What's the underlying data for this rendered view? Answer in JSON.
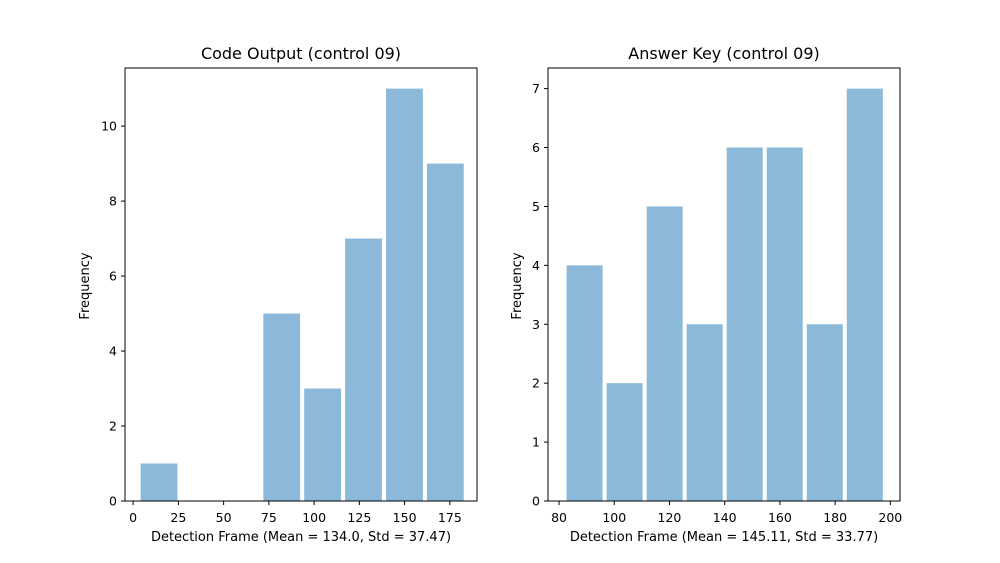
{
  "bar_color": "#8cb9d9",
  "chart_data": [
    {
      "type": "bar",
      "title": "Code Output (control 09)",
      "xlabel": "Detection Frame (Mean = 134.0, Std = 37.47)",
      "ylabel": "Frequency",
      "xlim": [
        -4.5,
        190
      ],
      "ylim": [
        0,
        11.55
      ],
      "xticks": [
        0,
        25,
        50,
        75,
        100,
        125,
        150,
        175
      ],
      "yticks": [
        0,
        2,
        4,
        6,
        8,
        10
      ],
      "bin_edges": [
        3,
        25.6,
        48.2,
        70.8,
        93.4,
        116,
        138.6,
        161.2,
        183.8
      ],
      "values": [
        1,
        0,
        0,
        5,
        3,
        7,
        11,
        9
      ]
    },
    {
      "type": "bar",
      "title": "Answer Key (control 09)",
      "xlabel": "Detection Frame (Mean = 145.11, Std = 33.77)",
      "ylabel": "Frequency",
      "xlim": [
        76,
        203.5
      ],
      "ylim": [
        0,
        7.35
      ],
      "xticks": [
        80,
        100,
        120,
        140,
        160,
        180,
        200
      ],
      "yticks": [
        0,
        1,
        2,
        3,
        4,
        5,
        6,
        7
      ],
      "bin_edges": [
        82,
        96.5,
        111,
        125.5,
        140,
        154.5,
        169,
        183.5,
        198
      ],
      "values": [
        4,
        2,
        5,
        3,
        6,
        6,
        3,
        7
      ]
    }
  ]
}
